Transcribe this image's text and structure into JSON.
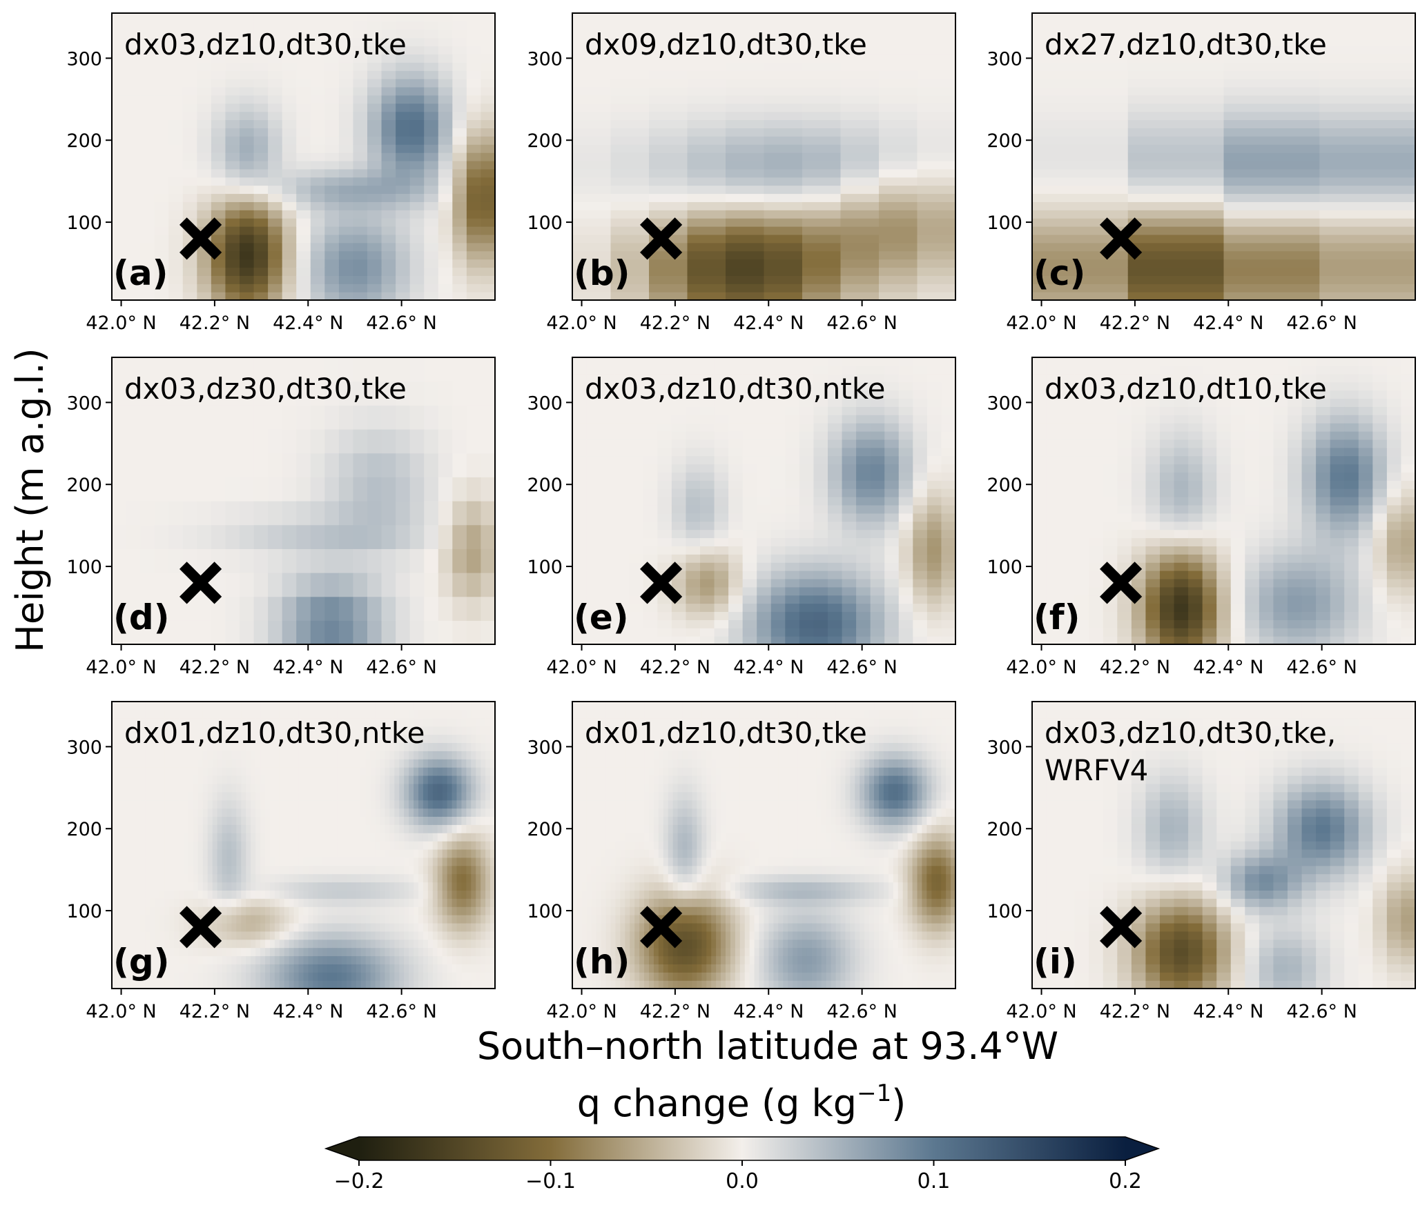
{
  "chart_data": {
    "type": "heatmap",
    "ylabel": "Height (m a.g.l.)",
    "xlabel": "South–north latitude at 93.4°W",
    "colorbar": {
      "label_prefix": "q change (g kg",
      "label_superscript": "−1",
      "label_suffix": ")",
      "range": [
        -0.2,
        0.2
      ],
      "ticks": [
        -0.2,
        -0.1,
        0.0,
        0.1,
        0.2
      ],
      "tick_labels": [
        "−0.2",
        "−0.1",
        "0.0",
        "0.1",
        "0.2"
      ],
      "extend": "both",
      "colors_negative": "#1f1f10",
      "colors_mid_negative": "#836c3a",
      "colors_zero": "#f3efeb",
      "colors_mid_positive": "#5c7890",
      "colors_positive": "#0a1f3f"
    },
    "x_range": [
      41.98,
      42.8
    ],
    "y_range": [
      5,
      355
    ],
    "x_ticks": [
      42.0,
      42.2,
      42.4,
      42.6
    ],
    "x_tick_labels": [
      "42.0° N",
      "42.2° N",
      "42.4° N",
      "42.6° N"
    ],
    "y_ticks": [
      100,
      200,
      300
    ],
    "y_tick_labels": [
      "100",
      "200",
      "300"
    ],
    "marker": {
      "symbol": "✖",
      "lat": 42.17,
      "height": 80
    },
    "panels": [
      {
        "letter": "(a)",
        "title": [
          "dx03,dz10,dt30,tke"
        ],
        "nx": 27,
        "nz": 35,
        "blobs": [
          {
            "lat": 42.27,
            "z": 60,
            "sx": 0.06,
            "sz": 50,
            "v": -0.17
          },
          {
            "lat": 42.77,
            "z": 130,
            "sx": 0.04,
            "sz": 55,
            "v": -0.12
          },
          {
            "lat": 42.27,
            "z": 185,
            "sx": 0.05,
            "sz": 40,
            "v": 0.06
          },
          {
            "lat": 42.62,
            "z": 215,
            "sx": 0.06,
            "sz": 45,
            "v": 0.11
          },
          {
            "lat": 42.48,
            "z": 140,
            "sx": 0.12,
            "sz": 18,
            "v": 0.05
          },
          {
            "lat": 42.5,
            "z": 45,
            "sx": 0.08,
            "sz": 45,
            "v": 0.08
          }
        ]
      },
      {
        "letter": "(b)",
        "title": [
          "dx09,dz10,dt30,tke"
        ],
        "nx": 10,
        "nz": 35,
        "blobs": [
          {
            "lat": 42.35,
            "z": 45,
            "sx": 0.15,
            "sz": 50,
            "v": -0.15
          },
          {
            "lat": 42.68,
            "z": 100,
            "sx": 0.12,
            "sz": 50,
            "v": -0.07
          },
          {
            "lat": 42.45,
            "z": 165,
            "sx": 0.22,
            "sz": 40,
            "v": 0.06
          }
        ]
      },
      {
        "letter": "(c)",
        "title": [
          "dx27,dz10,dt30,tke"
        ],
        "nx": 4,
        "nz": 35,
        "blobs": [
          {
            "lat": 42.3,
            "z": 45,
            "sx": 0.2,
            "sz": 50,
            "v": -0.13
          },
          {
            "lat": 42.75,
            "z": 50,
            "sx": 0.12,
            "sz": 50,
            "v": -0.05
          },
          {
            "lat": 42.55,
            "z": 170,
            "sx": 0.25,
            "sz": 45,
            "v": 0.07
          }
        ]
      },
      {
        "letter": "(d)",
        "title": [
          "dx03,dz30,dt30,tke"
        ],
        "nx": 27,
        "nz": 12,
        "blobs": [
          {
            "lat": 42.45,
            "z": 30,
            "sx": 0.08,
            "sz": 40,
            "v": 0.09
          },
          {
            "lat": 42.55,
            "z": 200,
            "sx": 0.08,
            "sz": 50,
            "v": 0.04
          },
          {
            "lat": 42.42,
            "z": 140,
            "sx": 0.15,
            "sz": 20,
            "v": 0.03
          },
          {
            "lat": 42.75,
            "z": 120,
            "sx": 0.04,
            "sz": 45,
            "v": -0.06
          }
        ]
      },
      {
        "letter": "(e)",
        "title": [
          "dx03,dz10,dt30,ntke"
        ],
        "nx": 27,
        "nz": 35,
        "blobs": [
          {
            "lat": 42.27,
            "z": 80,
            "sx": 0.05,
            "sz": 30,
            "v": -0.07
          },
          {
            "lat": 42.75,
            "z": 120,
            "sx": 0.04,
            "sz": 50,
            "v": -0.07
          },
          {
            "lat": 42.5,
            "z": 30,
            "sx": 0.1,
            "sz": 45,
            "v": 0.12
          },
          {
            "lat": 42.62,
            "z": 215,
            "sx": 0.06,
            "sz": 45,
            "v": 0.09
          },
          {
            "lat": 42.25,
            "z": 170,
            "sx": 0.04,
            "sz": 40,
            "v": 0.04
          }
        ]
      },
      {
        "letter": "(f)",
        "title": [
          "dx03,dz10,dt10,tke"
        ],
        "nx": 27,
        "nz": 35,
        "blobs": [
          {
            "lat": 42.3,
            "z": 50,
            "sx": 0.06,
            "sz": 50,
            "v": -0.17
          },
          {
            "lat": 42.77,
            "z": 130,
            "sx": 0.04,
            "sz": 45,
            "v": -0.06
          },
          {
            "lat": 42.65,
            "z": 210,
            "sx": 0.06,
            "sz": 50,
            "v": 0.1
          },
          {
            "lat": 42.55,
            "z": 55,
            "sx": 0.09,
            "sz": 45,
            "v": 0.07
          },
          {
            "lat": 42.3,
            "z": 190,
            "sx": 0.05,
            "sz": 50,
            "v": 0.05
          }
        ]
      },
      {
        "letter": "(g)",
        "title": [
          "dx01,dz10,dt30,ntke"
        ],
        "nx": 80,
        "nz": 35,
        "blobs": [
          {
            "lat": 42.27,
            "z": 85,
            "sx": 0.07,
            "sz": 22,
            "v": -0.05
          },
          {
            "lat": 42.73,
            "z": 135,
            "sx": 0.04,
            "sz": 40,
            "v": -0.1
          },
          {
            "lat": 42.68,
            "z": 245,
            "sx": 0.05,
            "sz": 30,
            "v": 0.12
          },
          {
            "lat": 42.45,
            "z": 20,
            "sx": 0.1,
            "sz": 35,
            "v": 0.1
          },
          {
            "lat": 42.23,
            "z": 165,
            "sx": 0.03,
            "sz": 50,
            "v": 0.04
          },
          {
            "lat": 42.47,
            "z": 125,
            "sx": 0.12,
            "sz": 12,
            "v": 0.03
          }
        ]
      },
      {
        "letter": "(h)",
        "title": [
          "dx01,dz10,dt30,tke"
        ],
        "nx": 80,
        "nz": 35,
        "blobs": [
          {
            "lat": 42.22,
            "z": 60,
            "sx": 0.07,
            "sz": 45,
            "v": -0.14
          },
          {
            "lat": 42.76,
            "z": 135,
            "sx": 0.04,
            "sz": 40,
            "v": -0.11
          },
          {
            "lat": 42.67,
            "z": 245,
            "sx": 0.05,
            "sz": 30,
            "v": 0.11
          },
          {
            "lat": 42.48,
            "z": 40,
            "sx": 0.07,
            "sz": 40,
            "v": 0.07
          },
          {
            "lat": 42.22,
            "z": 170,
            "sx": 0.03,
            "sz": 50,
            "v": 0.05
          },
          {
            "lat": 42.47,
            "z": 125,
            "sx": 0.12,
            "sz": 12,
            "v": 0.04
          }
        ]
      },
      {
        "letter": "(i)",
        "title": [
          "dx03,dz10,dt30,tke,",
          "WRFV4"
        ],
        "nx": 27,
        "nz": 35,
        "blobs": [
          {
            "lat": 42.3,
            "z": 50,
            "sx": 0.07,
            "sz": 45,
            "v": -0.14
          },
          {
            "lat": 42.78,
            "z": 90,
            "sx": 0.04,
            "sz": 40,
            "v": -0.06
          },
          {
            "lat": 42.6,
            "z": 200,
            "sx": 0.07,
            "sz": 40,
            "v": 0.1
          },
          {
            "lat": 42.47,
            "z": 135,
            "sx": 0.06,
            "sz": 25,
            "v": 0.08
          },
          {
            "lat": 42.28,
            "z": 200,
            "sx": 0.05,
            "sz": 45,
            "v": 0.05
          },
          {
            "lat": 42.52,
            "z": 30,
            "sx": 0.06,
            "sz": 35,
            "v": 0.05
          }
        ]
      }
    ]
  }
}
